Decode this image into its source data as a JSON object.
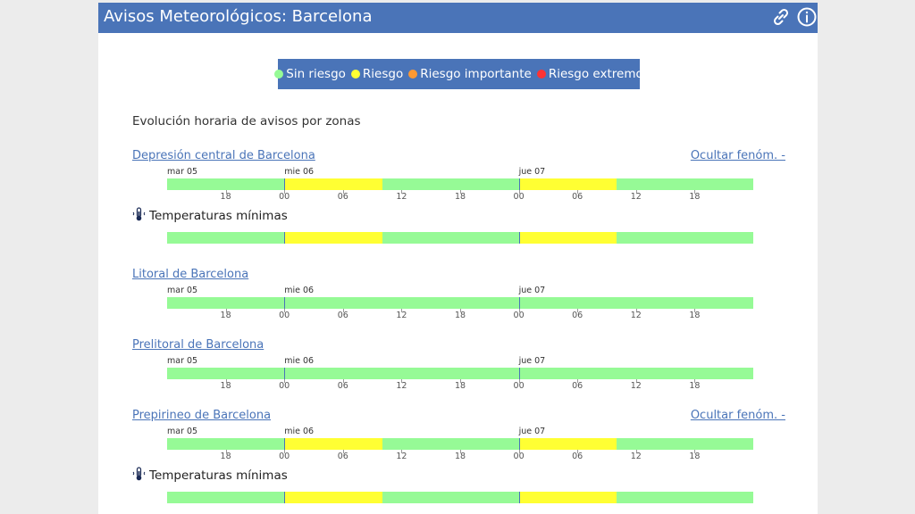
{
  "header": {
    "title": "Avisos Meteorológicos: Barcelona",
    "link_icon": "link-icon",
    "info_icon": "info-icon"
  },
  "legend": {
    "items": [
      {
        "label": "Sin riesgo",
        "color": "#96fa96"
      },
      {
        "label": "Riesgo",
        "color": "#ffff33"
      },
      {
        "label": "Riesgo importante",
        "color": "#ff9933"
      },
      {
        "label": "Riesgo extremo",
        "color": "#ff3333"
      }
    ]
  },
  "section_title": "Evolución horaria de avisos por zonas",
  "timeline": {
    "start_hour": 12,
    "span_hours": 60,
    "days": [
      {
        "label": "mar 05",
        "hour": 12
      },
      {
        "label": "mie 06",
        "hour": 24
      },
      {
        "label": "jue 07",
        "hour": 48
      }
    ],
    "hour_ticks": [
      {
        "label": "18",
        "hour": 18
      },
      {
        "label": "00",
        "hour": 24
      },
      {
        "label": "06",
        "hour": 30
      },
      {
        "label": "12",
        "hour": 36
      },
      {
        "label": "18",
        "hour": 42
      },
      {
        "label": "00",
        "hour": 48
      },
      {
        "label": "06",
        "hour": 54
      },
      {
        "label": "12",
        "hour": 60
      },
      {
        "label": "18",
        "hour": 66
      }
    ]
  },
  "zones": [
    {
      "name": "Depresión central de Barcelona",
      "toggle": "Ocultar fenóm. -",
      "warnings": [
        {
          "from": 24,
          "to": 34,
          "level": "Riesgo"
        },
        {
          "from": 48,
          "to": 58,
          "level": "Riesgo"
        }
      ],
      "phenomena": [
        {
          "name": "Temperaturas mínimas",
          "icon": "thermometer-icon",
          "warnings": [
            {
              "from": 24,
              "to": 34,
              "level": "Riesgo"
            },
            {
              "from": 48,
              "to": 58,
              "level": "Riesgo"
            }
          ]
        }
      ]
    },
    {
      "name": "Litoral de Barcelona",
      "toggle": "",
      "warnings": [],
      "phenomena": []
    },
    {
      "name": "Prelitoral de Barcelona",
      "toggle": "",
      "warnings": [],
      "phenomena": []
    },
    {
      "name": "Prepirineo de Barcelona",
      "toggle": "Ocultar fenóm. -",
      "warnings": [
        {
          "from": 24,
          "to": 34,
          "level": "Riesgo"
        },
        {
          "from": 48,
          "to": 58,
          "level": "Riesgo"
        }
      ],
      "phenomena": [
        {
          "name": "Temperaturas mínimas",
          "icon": "thermometer-icon",
          "warnings": [
            {
              "from": 24,
              "to": 34,
              "level": "Riesgo"
            },
            {
              "from": 48,
              "to": 58,
              "level": "Riesgo"
            }
          ]
        }
      ]
    }
  ]
}
